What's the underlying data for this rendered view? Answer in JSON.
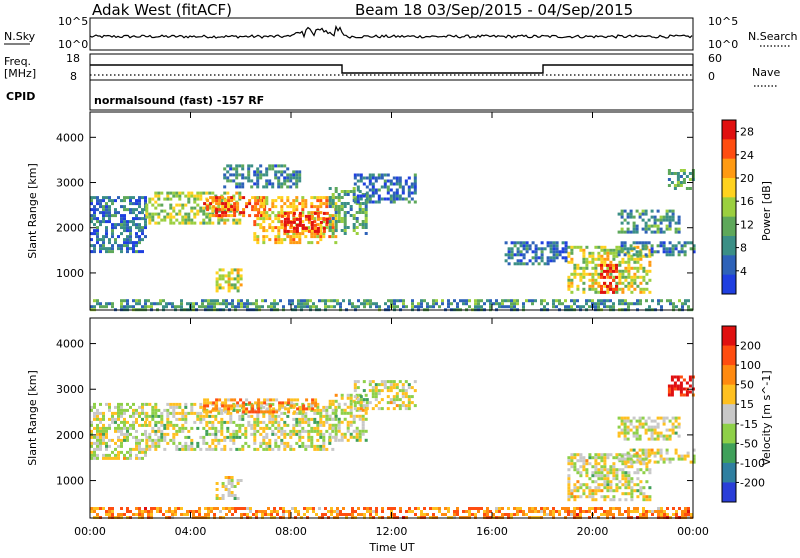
{
  "header": {
    "station": "Adak West (fitACF)",
    "beam_period": "Beam 18  03/Sep/2015 - 04/Sep/2015"
  },
  "strips": {
    "nsky_label": "N.Sky",
    "nsearch_label": "N.Search",
    "nsky_tick_top": "10^5",
    "nsky_tick_bottom": "10^0",
    "freq_label": "Freq.",
    "freq_unit": "[MHz]",
    "freq_tick_top": "18",
    "freq_tick_bottom": "8",
    "nave_label": "Nave",
    "nave_tick_top": "60",
    "nave_tick_bottom": "0",
    "cpid_label": "CPID",
    "cpid_text": "normalsound (fast) -157 RF"
  },
  "chart_data": [
    {
      "type": "heatmap",
      "name": "power",
      "ylabel": "Slant Range [km]",
      "xlabel": "",
      "xticks": [
        "00:00",
        "04:00",
        "08:00",
        "12:00",
        "16:00",
        "20:00",
        "00:00"
      ],
      "xlim_hours": [
        0,
        24
      ],
      "yticks": [
        1000,
        2000,
        3000,
        4000
      ],
      "ylim": [
        180,
        4560
      ],
      "colorbar": {
        "label": "Power [dB]",
        "ticks": [
          4,
          8,
          12,
          16,
          20,
          24,
          28
        ],
        "range": [
          0,
          30
        ],
        "colors": [
          "#1f3fe0",
          "#2e62b8",
          "#3b8f86",
          "#5ea85a",
          "#9bcf3f",
          "#ffd21f",
          "#ff9a12",
          "#ff4d10",
          "#e01010"
        ]
      },
      "regions": [
        {
          "t0": 0.0,
          "t1": 2.2,
          "r0": 1500,
          "r1": 2700,
          "level": 0.2
        },
        {
          "t0": 2.2,
          "t1": 6.0,
          "r0": 2100,
          "r1": 2800,
          "level": 0.5
        },
        {
          "t0": 4.5,
          "t1": 7.0,
          "r0": 2250,
          "r1": 2700,
          "level": 0.8
        },
        {
          "t0": 6.5,
          "t1": 9.8,
          "r0": 1700,
          "r1": 2700,
          "level": 0.65
        },
        {
          "t0": 7.6,
          "t1": 9.4,
          "r0": 1950,
          "r1": 2350,
          "level": 0.9
        },
        {
          "t0": 9.5,
          "t1": 11.0,
          "r0": 1900,
          "r1": 2900,
          "level": 0.35
        },
        {
          "t0": 5.0,
          "t1": 6.0,
          "r0": 600,
          "r1": 1100,
          "level": 0.55
        },
        {
          "t0": 10.5,
          "t1": 13.0,
          "r0": 2600,
          "r1": 3200,
          "level": 0.2
        },
        {
          "t0": 5.3,
          "t1": 8.4,
          "r0": 2900,
          "r1": 3400,
          "level": 0.25
        },
        {
          "t0": 16.5,
          "t1": 19.0,
          "r0": 1200,
          "r1": 1700,
          "level": 0.2
        },
        {
          "t0": 19.0,
          "t1": 22.3,
          "r0": 600,
          "r1": 1600,
          "level": 0.55
        },
        {
          "t0": 20.3,
          "t1": 21.0,
          "r0": 600,
          "r1": 1200,
          "level": 0.95
        },
        {
          "t0": 21.0,
          "t1": 24.0,
          "r0": 1400,
          "r1": 1700,
          "level": 0.25
        },
        {
          "t0": 21.0,
          "t1": 23.5,
          "r0": 1900,
          "r1": 2400,
          "level": 0.3
        },
        {
          "t0": 23.0,
          "t1": 24.0,
          "r0": 2900,
          "r1": 3300,
          "level": 0.35
        },
        {
          "t0": 0.0,
          "t1": 24.0,
          "r0": 200,
          "r1": 420,
          "level": 0.3
        }
      ]
    },
    {
      "type": "heatmap",
      "name": "velocity",
      "ylabel": "Slant Range [km]",
      "xlabel": "Time UT",
      "xticks": [
        "00:00",
        "04:00",
        "08:00",
        "12:00",
        "16:00",
        "20:00",
        "00:00"
      ],
      "xlim_hours": [
        0,
        24
      ],
      "yticks": [
        1000,
        2000,
        3000,
        4000
      ],
      "ylim": [
        180,
        4560
      ],
      "colorbar": {
        "label": "Velocity [m s^-1]",
        "ticks": [
          200,
          100,
          50,
          15,
          -15,
          -50,
          -100,
          -200
        ],
        "range": [
          -250,
          250
        ],
        "colors": [
          "#2a3ed8",
          "#2f7fa0",
          "#3fa05a",
          "#8ed048",
          "#c8c8c8",
          "#ffc020",
          "#ff8a10",
          "#ff4d10",
          "#e01010"
        ]
      },
      "regions": [
        {
          "t0": 0.0,
          "t1": 2.2,
          "r0": 1500,
          "r1": 2700,
          "level": 0.5
        },
        {
          "t0": 2.2,
          "t1": 9.8,
          "r0": 1700,
          "r1": 2700,
          "level": 0.48
        },
        {
          "t0": 4.5,
          "t1": 9.0,
          "r0": 2500,
          "r1": 2800,
          "level": 0.7
        },
        {
          "t0": 9.5,
          "t1": 11.0,
          "r0": 1900,
          "r1": 2900,
          "level": 0.5
        },
        {
          "t0": 5.0,
          "t1": 6.0,
          "r0": 600,
          "r1": 1100,
          "level": 0.5
        },
        {
          "t0": 10.5,
          "t1": 13.0,
          "r0": 2600,
          "r1": 3200,
          "level": 0.5
        },
        {
          "t0": 19.0,
          "t1": 22.3,
          "r0": 600,
          "r1": 1600,
          "level": 0.5
        },
        {
          "t0": 21.0,
          "t1": 24.0,
          "r0": 1400,
          "r1": 1700,
          "level": 0.5
        },
        {
          "t0": 21.0,
          "t1": 23.5,
          "r0": 1900,
          "r1": 2400,
          "level": 0.5
        },
        {
          "t0": 23.0,
          "t1": 24.0,
          "r0": 2900,
          "r1": 3300,
          "level": 0.95
        },
        {
          "t0": 0.0,
          "t1": 24.0,
          "r0": 200,
          "r1": 420,
          "level": 0.72
        }
      ]
    }
  ]
}
